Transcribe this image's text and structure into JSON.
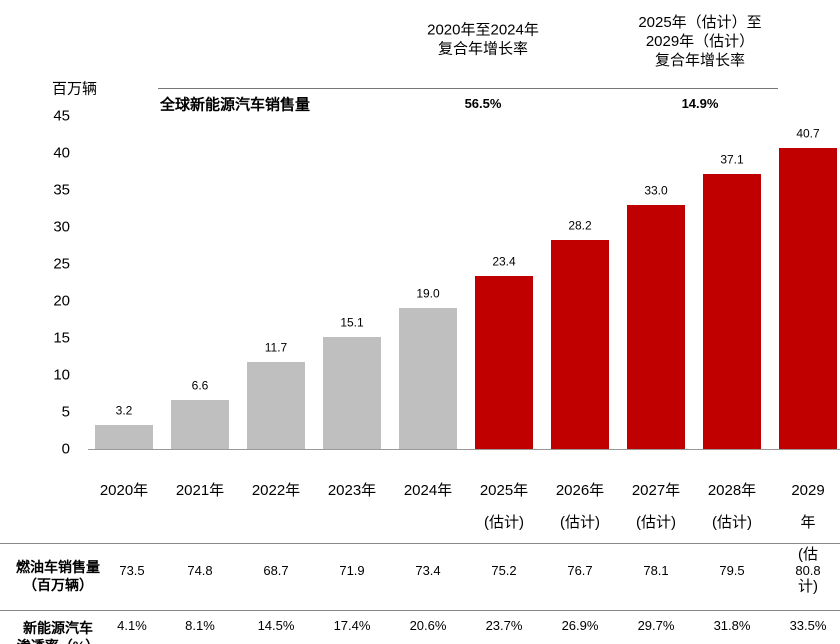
{
  "chart_data": {
    "type": "bar",
    "y_label": "百万辆",
    "series_label": "全球新能源汽车销售量",
    "annotations": [
      {
        "text": "2020年至2024年\n复合年增长率",
        "value": "56.5%"
      },
      {
        "text": "2025年（估计）至\n2029年（估计）\n复合年增长率",
        "value": "14.9%"
      }
    ],
    "categories": [
      "2020年",
      "2021年",
      "2022年",
      "2023年",
      "2024年",
      "2025年\n(估计)",
      "2026年\n(估计)",
      "2027年\n(估计)",
      "2028年\n(估计)",
      "2029年\n(估计)"
    ],
    "values": [
      3.2,
      6.6,
      11.7,
      15.1,
      19.0,
      23.4,
      28.2,
      33.0,
      37.1,
      40.7
    ],
    "value_labels": [
      "3.2",
      "6.6",
      "11.7",
      "15.1",
      "19.0",
      "23.4",
      "28.2",
      "33.0",
      "37.1",
      "40.7"
    ],
    "colors": [
      "#bfbfbf",
      "#bfbfbf",
      "#bfbfbf",
      "#bfbfbf",
      "#bfbfbf",
      "#c00000",
      "#c00000",
      "#c00000",
      "#c00000",
      "#c00000"
    ],
    "ylim": [
      0,
      45
    ],
    "yticks": [
      0,
      5,
      10,
      15,
      20,
      25,
      30,
      35,
      40,
      45
    ],
    "grid": false
  },
  "table": {
    "rows": [
      {
        "label": "燃油车销售量\n（百万辆）",
        "cells": [
          "73.5",
          "74.8",
          "68.7",
          "71.9",
          "73.4",
          "75.2",
          "76.7",
          "78.1",
          "79.5",
          "80.8"
        ]
      },
      {
        "label": "新能源汽车\n渗透率（%）",
        "cells": [
          "4.1%",
          "8.1%",
          "14.5%",
          "17.4%",
          "20.6%",
          "23.7%",
          "26.9%",
          "29.7%",
          "31.8%",
          "33.5%"
        ]
      }
    ]
  }
}
